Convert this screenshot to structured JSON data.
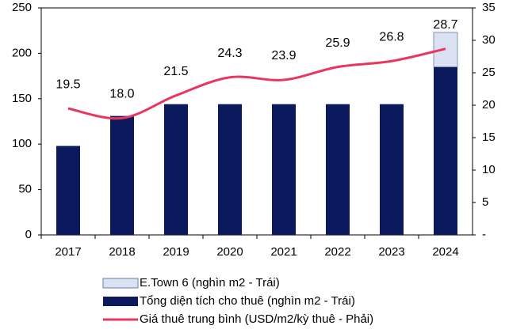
{
  "chart_data": {
    "type": "bar",
    "stacked": true,
    "categories": [
      "2017",
      "2018",
      "2019",
      "2020",
      "2021",
      "2022",
      "2023",
      "2024"
    ],
    "series": [
      {
        "name": "E.Town 6 (nghìn m2 - Trái)",
        "type": "bar",
        "color": "#d9e1f2",
        "values": [
          null,
          null,
          null,
          null,
          null,
          null,
          null,
          38
        ]
      },
      {
        "name": "Tổng diện tích cho thuê (nghìn m2 - Trái)",
        "type": "bar",
        "color": "#0b1a5c",
        "values": [
          98,
          131,
          144,
          144,
          144,
          144,
          144,
          185
        ]
      },
      {
        "name": "Giá thuê trung bình (USD/m2/kỳ thuê - Phải)",
        "type": "line",
        "axis": "y2",
        "color": "#e8365d",
        "values": [
          19.5,
          18.0,
          21.5,
          24.3,
          23.9,
          25.9,
          26.8,
          28.7
        ],
        "value_labels": [
          "19.5",
          "18.0",
          "21.5",
          "24.3",
          "23.9",
          "25.9",
          "26.8",
          "28.7"
        ]
      }
    ],
    "ylim": [
      0,
      250
    ],
    "yticks": [
      0,
      50,
      100,
      150,
      200,
      250
    ],
    "y2lim": [
      0,
      35
    ],
    "y2ticks": [
      {
        "value": 0,
        "label": "-"
      },
      5,
      10,
      15,
      20,
      25,
      30,
      35
    ]
  }
}
